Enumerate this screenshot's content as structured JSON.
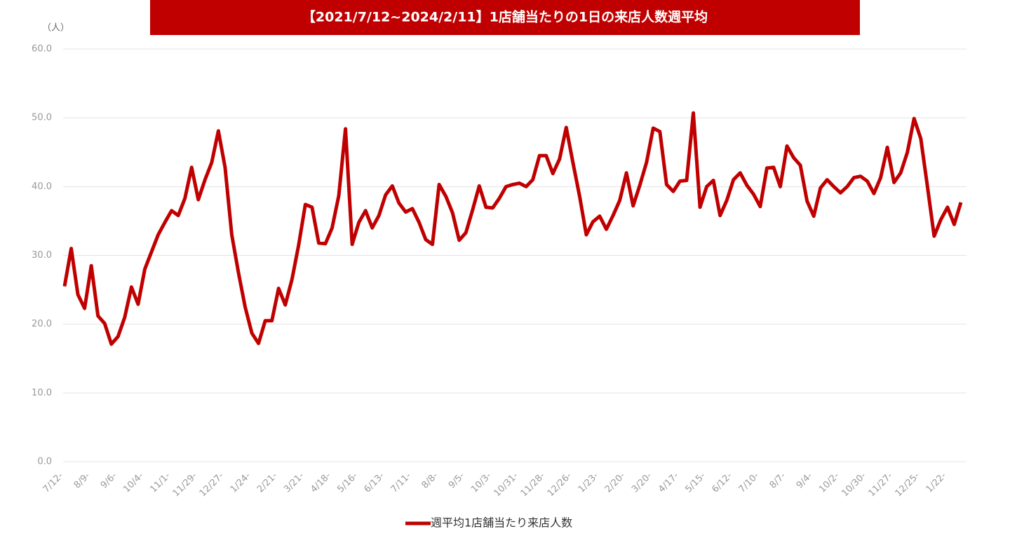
{
  "chart_data": {
    "type": "line",
    "title": "【2021/7/12~2024/2/11】1店舗当たりの1日の来店人数週平均",
    "y_unit": "（人）",
    "categories": [
      "7/12-",
      null,
      null,
      null,
      "8/9-",
      null,
      null,
      null,
      "9/6-",
      null,
      null,
      null,
      "10/4-",
      null,
      null,
      null,
      "11/1-",
      null,
      null,
      null,
      "11/29-",
      null,
      null,
      null,
      "12/27-",
      null,
      null,
      null,
      "1/24-",
      null,
      null,
      null,
      "2/21-",
      null,
      null,
      null,
      "3/21-",
      null,
      null,
      null,
      "4/18-",
      null,
      null,
      null,
      "5/16-",
      null,
      null,
      null,
      "6/13-",
      null,
      null,
      null,
      "7/11-",
      null,
      null,
      null,
      "8/8-",
      null,
      null,
      null,
      "9/5-",
      null,
      null,
      null,
      "10/3-",
      null,
      null,
      null,
      "10/31-",
      null,
      null,
      null,
      "11/28-",
      null,
      null,
      null,
      "12/26-",
      null,
      null,
      null,
      "1/23-",
      null,
      null,
      null,
      "2/20-",
      null,
      null,
      null,
      "3/20-",
      null,
      null,
      null,
      "4/17-",
      null,
      null,
      null,
      "5/15-",
      null,
      null,
      null,
      "6/12-",
      null,
      null,
      null,
      "7/10-",
      null,
      null,
      null,
      "8/7-",
      null,
      null,
      null,
      "9/4-",
      null,
      null,
      null,
      "10/2-",
      null,
      null,
      null,
      "10/30-",
      null,
      null,
      null,
      "11/27-",
      null,
      null,
      null,
      "12/25-",
      null,
      null,
      null,
      "1/22-",
      null,
      null
    ],
    "series": [
      {
        "name": "週平均1店舗当たり来店人数",
        "color": "#c00000",
        "values": [
          25.5,
          31,
          24.3,
          22.3,
          28.5,
          21.2,
          20.1,
          17.1,
          18.2,
          21,
          25.4,
          22.9,
          28,
          30.5,
          33,
          34.8,
          36.5,
          35.8,
          38.3,
          42.8,
          38.1,
          41,
          43.5,
          48.1,
          42.8,
          33,
          27.5,
          22.5,
          18.7,
          17.2,
          20.5,
          20.5,
          25.2,
          22.8,
          26.5,
          31.5,
          37.4,
          37,
          31.8,
          31.7,
          34,
          38.7,
          48.4,
          31.6,
          34.8,
          36.5,
          34,
          35.8,
          38.8,
          40.1,
          37.6,
          36.3,
          36.8,
          34.8,
          32.3,
          31.6,
          40.3,
          38.6,
          36.2,
          32.2,
          33.3,
          36.6,
          40.1,
          37,
          36.9,
          38.3,
          40,
          40.3,
          40.5,
          40,
          41,
          44.5,
          44.5,
          41.9,
          44,
          48.6,
          43.5,
          38.6,
          33,
          34.9,
          35.7,
          33.8,
          35.8,
          38,
          42,
          37.2,
          40.2,
          43.5,
          48.5,
          48,
          40.3,
          39.3,
          40.8,
          40.9,
          50.7,
          37,
          40,
          40.9,
          35.8,
          38,
          41,
          42,
          40.2,
          38.9,
          37.1,
          42.7,
          42.8,
          40,
          45.9,
          44.2,
          43.1,
          37.9,
          35.7,
          39.8,
          41,
          40,
          39.1,
          40,
          41.3,
          41.5,
          40.8,
          39,
          41.3,
          45.7,
          40.6,
          42,
          45,
          49.9,
          47,
          40,
          32.8,
          35.2,
          37,
          34.5,
          37.7
        ]
      }
    ],
    "ylim": [
      0,
      60
    ],
    "yticks": [
      {
        "value": 0,
        "label": "0.0"
      },
      {
        "value": 10,
        "label": "10.0"
      },
      {
        "value": 20,
        "label": "20.0"
      },
      {
        "value": 30,
        "label": "30.0"
      },
      {
        "value": 40,
        "label": "40.0"
      },
      {
        "value": 50,
        "label": "50.0"
      },
      {
        "value": 60,
        "label": "60.0"
      }
    ],
    "grid": true,
    "legend": "bottom"
  }
}
